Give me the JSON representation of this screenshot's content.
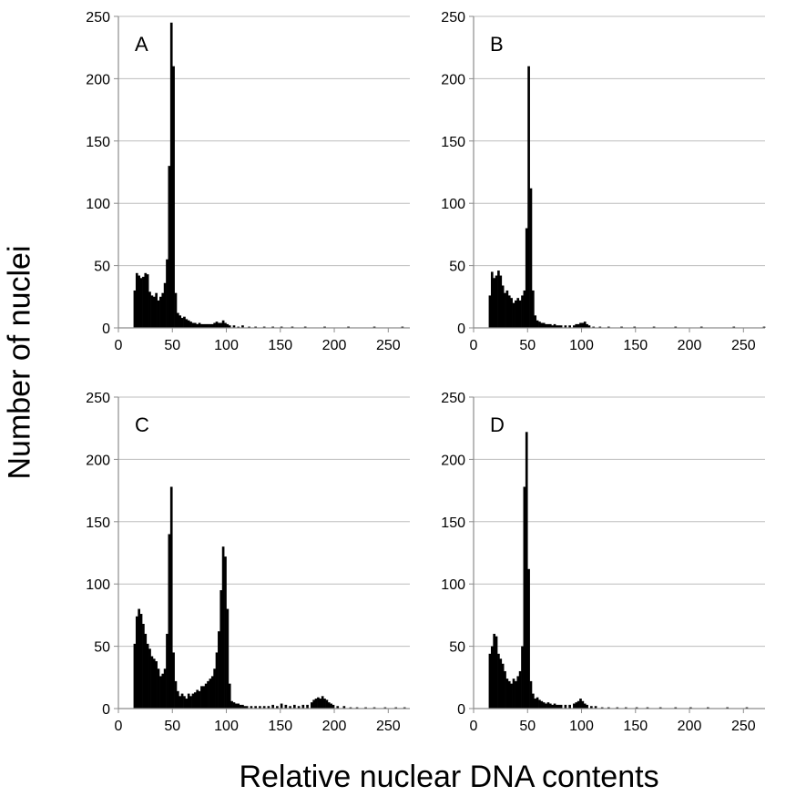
{
  "figure": {
    "ylabel": "Number of nuclei",
    "xlabel": "Relative nuclear DNA contents"
  },
  "chart_data": [
    {
      "type": "bar",
      "panel_label": "A",
      "xlim": [
        0,
        270
      ],
      "ylim": [
        0,
        250
      ],
      "xticks": [
        0,
        50,
        100,
        150,
        200,
        250
      ],
      "yticks": [
        0,
        50,
        100,
        150,
        200,
        250
      ],
      "bin_width": 2,
      "bins": [
        [
          14,
          30
        ],
        [
          16,
          44
        ],
        [
          18,
          42
        ],
        [
          20,
          40
        ],
        [
          22,
          41
        ],
        [
          24,
          44
        ],
        [
          26,
          43
        ],
        [
          28,
          29
        ],
        [
          30,
          26
        ],
        [
          32,
          25
        ],
        [
          34,
          28
        ],
        [
          36,
          22
        ],
        [
          38,
          25
        ],
        [
          40,
          28
        ],
        [
          42,
          36
        ],
        [
          44,
          55
        ],
        [
          46,
          130
        ],
        [
          48,
          245
        ],
        [
          50,
          210
        ],
        [
          52,
          28
        ],
        [
          54,
          12
        ],
        [
          56,
          10
        ],
        [
          58,
          8
        ],
        [
          60,
          9
        ],
        [
          62,
          7
        ],
        [
          64,
          6
        ],
        [
          66,
          5
        ],
        [
          68,
          4
        ],
        [
          70,
          4
        ],
        [
          72,
          3
        ],
        [
          74,
          4
        ],
        [
          76,
          3
        ],
        [
          78,
          3
        ],
        [
          80,
          3
        ],
        [
          82,
          3
        ],
        [
          84,
          3
        ],
        [
          86,
          3
        ],
        [
          88,
          4
        ],
        [
          90,
          5
        ],
        [
          92,
          4
        ],
        [
          94,
          4
        ],
        [
          96,
          6
        ],
        [
          98,
          4
        ],
        [
          100,
          3
        ],
        [
          102,
          2
        ],
        [
          106,
          2
        ],
        [
          110,
          1
        ],
        [
          114,
          2
        ],
        [
          120,
          1
        ],
        [
          126,
          1
        ],
        [
          134,
          1
        ],
        [
          142,
          1
        ],
        [
          150,
          1
        ],
        [
          160,
          1
        ],
        [
          172,
          1
        ],
        [
          190,
          1
        ],
        [
          212,
          1
        ],
        [
          236,
          1
        ],
        [
          262,
          1
        ]
      ]
    },
    {
      "type": "bar",
      "panel_label": "B",
      "xlim": [
        0,
        270
      ],
      "ylim": [
        0,
        250
      ],
      "xticks": [
        0,
        50,
        100,
        150,
        200,
        250
      ],
      "yticks": [
        0,
        50,
        100,
        150,
        200,
        250
      ],
      "bin_width": 2,
      "bins": [
        [
          14,
          26
        ],
        [
          16,
          45
        ],
        [
          18,
          40
        ],
        [
          20,
          42
        ],
        [
          22,
          46
        ],
        [
          24,
          42
        ],
        [
          26,
          34
        ],
        [
          28,
          28
        ],
        [
          30,
          30
        ],
        [
          32,
          26
        ],
        [
          34,
          24
        ],
        [
          36,
          20
        ],
        [
          38,
          22
        ],
        [
          40,
          24
        ],
        [
          42,
          22
        ],
        [
          44,
          26
        ],
        [
          46,
          30
        ],
        [
          48,
          80
        ],
        [
          50,
          210
        ],
        [
          52,
          112
        ],
        [
          54,
          30
        ],
        [
          56,
          10
        ],
        [
          58,
          6
        ],
        [
          60,
          5
        ],
        [
          62,
          4
        ],
        [
          64,
          4
        ],
        [
          66,
          3
        ],
        [
          68,
          3
        ],
        [
          70,
          3
        ],
        [
          72,
          2
        ],
        [
          74,
          3
        ],
        [
          76,
          2
        ],
        [
          78,
          2
        ],
        [
          80,
          2
        ],
        [
          84,
          2
        ],
        [
          88,
          2
        ],
        [
          92,
          2
        ],
        [
          94,
          3
        ],
        [
          96,
          3
        ],
        [
          98,
          4
        ],
        [
          100,
          4
        ],
        [
          102,
          5
        ],
        [
          104,
          3
        ],
        [
          106,
          2
        ],
        [
          110,
          1
        ],
        [
          116,
          1
        ],
        [
          124,
          1
        ],
        [
          136,
          1
        ],
        [
          148,
          1
        ],
        [
          166,
          1
        ],
        [
          186,
          1
        ],
        [
          210,
          1
        ],
        [
          240,
          1
        ],
        [
          268,
          1
        ]
      ]
    },
    {
      "type": "bar",
      "panel_label": "C",
      "xlim": [
        0,
        270
      ],
      "ylim": [
        0,
        250
      ],
      "xticks": [
        0,
        50,
        100,
        150,
        200,
        250
      ],
      "yticks": [
        0,
        50,
        100,
        150,
        200,
        250
      ],
      "bin_width": 2,
      "bins": [
        [
          14,
          52
        ],
        [
          16,
          74
        ],
        [
          18,
          80
        ],
        [
          20,
          76
        ],
        [
          22,
          68
        ],
        [
          24,
          60
        ],
        [
          26,
          52
        ],
        [
          28,
          48
        ],
        [
          30,
          42
        ],
        [
          32,
          40
        ],
        [
          34,
          38
        ],
        [
          36,
          32
        ],
        [
          38,
          26
        ],
        [
          40,
          28
        ],
        [
          42,
          32
        ],
        [
          44,
          60
        ],
        [
          46,
          140
        ],
        [
          48,
          178
        ],
        [
          50,
          45
        ],
        [
          52,
          22
        ],
        [
          54,
          14
        ],
        [
          56,
          10
        ],
        [
          58,
          12
        ],
        [
          60,
          10
        ],
        [
          62,
          8
        ],
        [
          64,
          12
        ],
        [
          66,
          10
        ],
        [
          68,
          12
        ],
        [
          70,
          13
        ],
        [
          72,
          15
        ],
        [
          74,
          14
        ],
        [
          76,
          18
        ],
        [
          78,
          18
        ],
        [
          80,
          20
        ],
        [
          82,
          22
        ],
        [
          84,
          24
        ],
        [
          86,
          26
        ],
        [
          88,
          32
        ],
        [
          90,
          45
        ],
        [
          92,
          62
        ],
        [
          94,
          95
        ],
        [
          96,
          130
        ],
        [
          98,
          122
        ],
        [
          100,
          80
        ],
        [
          102,
          20
        ],
        [
          104,
          6
        ],
        [
          106,
          5
        ],
        [
          108,
          4
        ],
        [
          110,
          4
        ],
        [
          112,
          3
        ],
        [
          114,
          3
        ],
        [
          116,
          2
        ],
        [
          118,
          2
        ],
        [
          122,
          2
        ],
        [
          126,
          2
        ],
        [
          130,
          2
        ],
        [
          134,
          2
        ],
        [
          138,
          2
        ],
        [
          142,
          3
        ],
        [
          146,
          2
        ],
        [
          150,
          4
        ],
        [
          154,
          3
        ],
        [
          158,
          2
        ],
        [
          162,
          3
        ],
        [
          166,
          2
        ],
        [
          170,
          3
        ],
        [
          174,
          3
        ],
        [
          178,
          5
        ],
        [
          180,
          7
        ],
        [
          182,
          8
        ],
        [
          184,
          9
        ],
        [
          186,
          8
        ],
        [
          188,
          10
        ],
        [
          190,
          8
        ],
        [
          192,
          7
        ],
        [
          194,
          5
        ],
        [
          196,
          4
        ],
        [
          198,
          3
        ],
        [
          202,
          2
        ],
        [
          208,
          2
        ],
        [
          214,
          1
        ],
        [
          220,
          1
        ],
        [
          228,
          1
        ],
        [
          236,
          1
        ],
        [
          246,
          1
        ],
        [
          256,
          1
        ],
        [
          264,
          1
        ]
      ]
    },
    {
      "type": "bar",
      "panel_label": "D",
      "xlim": [
        0,
        270
      ],
      "ylim": [
        0,
        250
      ],
      "xticks": [
        0,
        50,
        100,
        150,
        200,
        250
      ],
      "yticks": [
        0,
        50,
        100,
        150,
        200,
        250
      ],
      "bin_width": 2,
      "bins": [
        [
          14,
          44
        ],
        [
          16,
          50
        ],
        [
          18,
          60
        ],
        [
          20,
          58
        ],
        [
          22,
          44
        ],
        [
          24,
          40
        ],
        [
          26,
          36
        ],
        [
          28,
          30
        ],
        [
          30,
          24
        ],
        [
          32,
          22
        ],
        [
          34,
          20
        ],
        [
          36,
          24
        ],
        [
          38,
          22
        ],
        [
          40,
          26
        ],
        [
          42,
          30
        ],
        [
          44,
          50
        ],
        [
          46,
          178
        ],
        [
          48,
          222
        ],
        [
          50,
          112
        ],
        [
          52,
          22
        ],
        [
          54,
          12
        ],
        [
          56,
          8
        ],
        [
          58,
          9
        ],
        [
          60,
          7
        ],
        [
          62,
          6
        ],
        [
          64,
          5
        ],
        [
          66,
          4
        ],
        [
          68,
          5
        ],
        [
          70,
          4
        ],
        [
          72,
          3
        ],
        [
          74,
          4
        ],
        [
          76,
          3
        ],
        [
          78,
          3
        ],
        [
          80,
          3
        ],
        [
          84,
          3
        ],
        [
          88,
          3
        ],
        [
          92,
          4
        ],
        [
          94,
          5
        ],
        [
          96,
          6
        ],
        [
          98,
          8
        ],
        [
          100,
          6
        ],
        [
          102,
          4
        ],
        [
          104,
          3
        ],
        [
          108,
          2
        ],
        [
          112,
          2
        ],
        [
          118,
          1
        ],
        [
          124,
          1
        ],
        [
          132,
          1
        ],
        [
          140,
          1
        ],
        [
          150,
          1
        ],
        [
          160,
          1
        ],
        [
          172,
          1
        ],
        [
          186,
          1
        ],
        [
          200,
          1
        ],
        [
          216,
          1
        ],
        [
          234,
          1
        ],
        [
          252,
          1
        ]
      ]
    }
  ]
}
